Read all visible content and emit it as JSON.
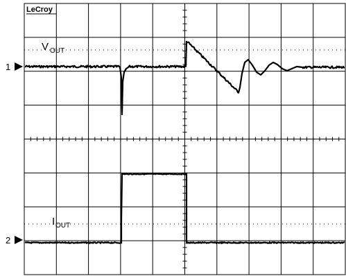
{
  "brand": "LeCroy",
  "traces": [
    {
      "channel": "1",
      "label_main": "V",
      "label_sub": "OUT"
    },
    {
      "channel": "2",
      "label_main": "I",
      "label_sub": "OUT"
    }
  ],
  "grid": {
    "divisions_x": 10,
    "divisions_y": 8
  }
}
